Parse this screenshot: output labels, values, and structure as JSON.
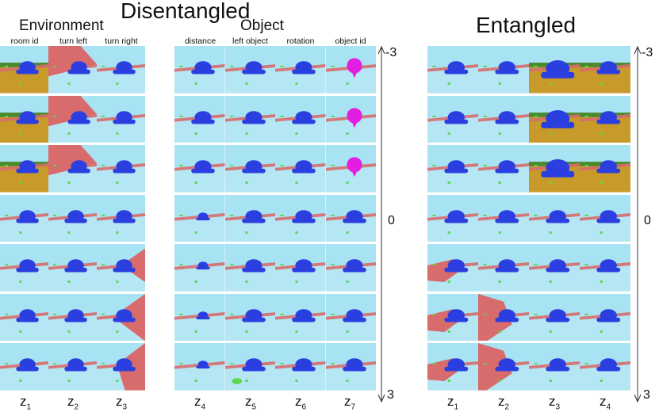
{
  "titles": {
    "disentangled": "Disentangled",
    "environment": "Environment",
    "object": "Object",
    "entangled": "Entangled"
  },
  "environment_columns": [
    {
      "header": "room id",
      "z": "z",
      "sub": "1"
    },
    {
      "header": "turn left",
      "z": "z",
      "sub": "2"
    },
    {
      "header": "turn right",
      "z": "z",
      "sub": "3"
    }
  ],
  "object_columns": [
    {
      "header": "distance",
      "z": "z",
      "sub": "4"
    },
    {
      "header": "left object",
      "z": "z",
      "sub": "5"
    },
    {
      "header": "rotation",
      "z": "z",
      "sub": "6"
    },
    {
      "header": "object id",
      "z": "z",
      "sub": "7"
    }
  ],
  "entangled_columns": [
    {
      "z": "z",
      "sub": "1"
    },
    {
      "z": "z",
      "sub": "2"
    },
    {
      "z": "z",
      "sub": "3"
    },
    {
      "z": "z",
      "sub": "4"
    }
  ],
  "axis": {
    "top": "-3",
    "middle": "0",
    "bottom": "3"
  },
  "rows": 7,
  "colors": {
    "sky": "#a7e3f2",
    "floor": "#b5e6f3",
    "wall": "#d86b6b",
    "object_blue": "#2b3fe0",
    "room_ground": "#c89a2a",
    "room_green": "#4a8a2e",
    "magenta": "#e21ee0",
    "green_obj": "#5cd650"
  }
}
